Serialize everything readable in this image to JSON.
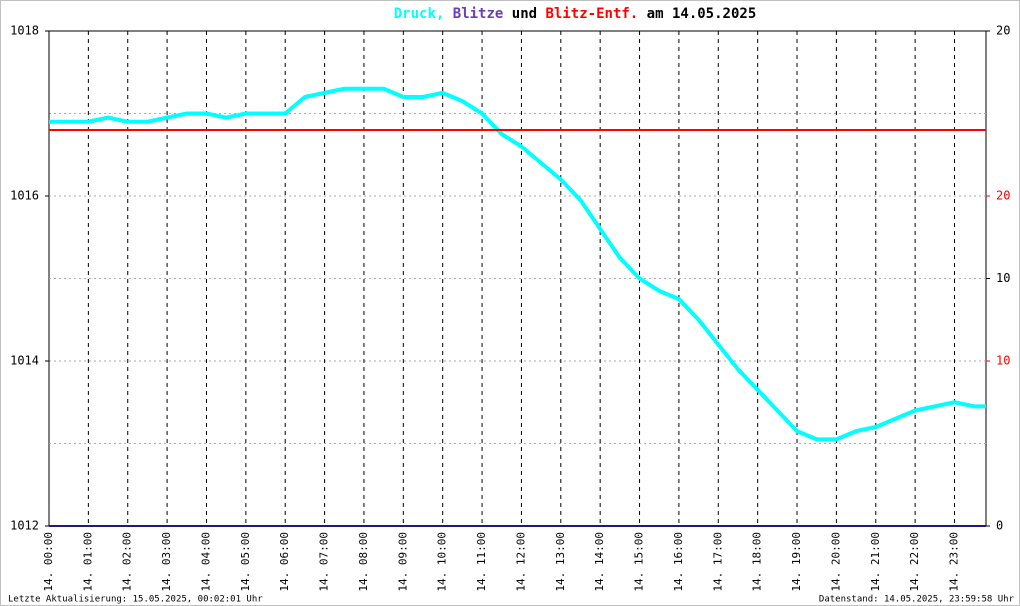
{
  "chart_data": {
    "type": "line",
    "title_parts": [
      {
        "text": "Druck,",
        "color": "#00ffff"
      },
      {
        "text": "Blitze",
        "color": "#6a3fb5"
      },
      {
        "text": "und",
        "color": "#000000"
      },
      {
        "text": "Blitz-Entf.",
        "color": "#ff0000"
      },
      {
        "text": "am 14.05.2025",
        "color": "#000000"
      }
    ],
    "series": [
      {
        "color": "#00ffff",
        "axis": "y",
        "x": [
          0,
          0.5,
          1,
          1.5,
          2,
          2.5,
          3,
          3.5,
          4,
          4.5,
          5,
          5.5,
          6,
          6.5,
          7,
          7.5,
          8,
          8.5,
          9,
          9.5,
          10,
          10.5,
          11,
          11.5,
          12,
          12.5,
          13,
          13.5,
          14,
          14.5,
          15,
          15.5,
          16,
          16.5,
          17,
          17.5,
          18,
          18.5,
          19,
          19.5,
          20,
          20.5,
          21,
          21.5,
          22,
          22.5,
          23,
          23.5,
          23.8
        ],
        "values": [
          1016.9,
          1016.9,
          1016.9,
          1016.95,
          1016.9,
          1016.9,
          1016.95,
          1017.0,
          1017.0,
          1016.95,
          1017.0,
          1017.0,
          1017.0,
          1017.2,
          1017.25,
          1017.3,
          1017.3,
          1017.3,
          1017.2,
          1017.2,
          1017.25,
          1017.15,
          1017.0,
          1016.75,
          1016.6,
          1016.4,
          1016.2,
          1015.95,
          1015.6,
          1015.25,
          1015.0,
          1014.85,
          1014.75,
          1014.5,
          1014.2,
          1013.9,
          1013.65,
          1013.4,
          1013.15,
          1013.05,
          1013.05,
          1013.15,
          1013.2,
          1013.3,
          1013.4,
          1013.45,
          1013.5,
          1013.45,
          1013.45
        ]
      },
      {
        "color": "#1a1a80",
        "axis": "y2",
        "x": [
          0,
          23.8
        ],
        "values": [
          0,
          0
        ]
      },
      {
        "color": "#ff0000",
        "axis": "y3",
        "x": [
          0,
          23.8
        ],
        "values": [
          24,
          24
        ]
      }
    ],
    "xlim": [
      0,
      23.8
    ],
    "xticks": [
      {
        "value": 0,
        "label": "14. 00:00"
      },
      {
        "value": 1,
        "label": "14. 01:00"
      },
      {
        "value": 2,
        "label": "14. 02:00"
      },
      {
        "value": 3,
        "label": "14. 03:00"
      },
      {
        "value": 4,
        "label": "14. 04:00"
      },
      {
        "value": 5,
        "label": "14. 05:00"
      },
      {
        "value": 6,
        "label": "14. 06:00"
      },
      {
        "value": 7,
        "label": "14. 07:00"
      },
      {
        "value": 8,
        "label": "14. 08:00"
      },
      {
        "value": 9,
        "label": "14. 09:00"
      },
      {
        "value": 10,
        "label": "14. 10:00"
      },
      {
        "value": 11,
        "label": "14. 11:00"
      },
      {
        "value": 12,
        "label": "14. 12:00"
      },
      {
        "value": 13,
        "label": "14. 13:00"
      },
      {
        "value": 14,
        "label": "14. 14:00"
      },
      {
        "value": 15,
        "label": "14. 15:00"
      },
      {
        "value": 16,
        "label": "14. 16:00"
      },
      {
        "value": 17,
        "label": "14. 17:00"
      },
      {
        "value": 18,
        "label": "14. 18:00"
      },
      {
        "value": 19,
        "label": "14. 19:00"
      },
      {
        "value": 20,
        "label": "14. 20:00"
      },
      {
        "value": 21,
        "label": "14. 21:00"
      },
      {
        "value": 22,
        "label": "14. 22:00"
      },
      {
        "value": 23,
        "label": "14. 23:00"
      }
    ],
    "ylim": [
      1012,
      1018
    ],
    "yticks": [
      1012,
      1014,
      1016,
      1018
    ],
    "ygrid": [
      1013,
      1014,
      1015,
      1016,
      1017
    ],
    "y2lim": [
      0,
      20
    ],
    "y2ticks": [
      0,
      10,
      20
    ],
    "y3lim": [
      0,
      30
    ],
    "y3ticks": [
      10,
      20
    ],
    "y3color": "#ff0000",
    "footer_left": "Letzte Aktualisierung: 15.05.2025, 00:02:01 Uhr",
    "footer_right": "Datenstand: 14.05.2025, 23:59:58 Uhr"
  }
}
